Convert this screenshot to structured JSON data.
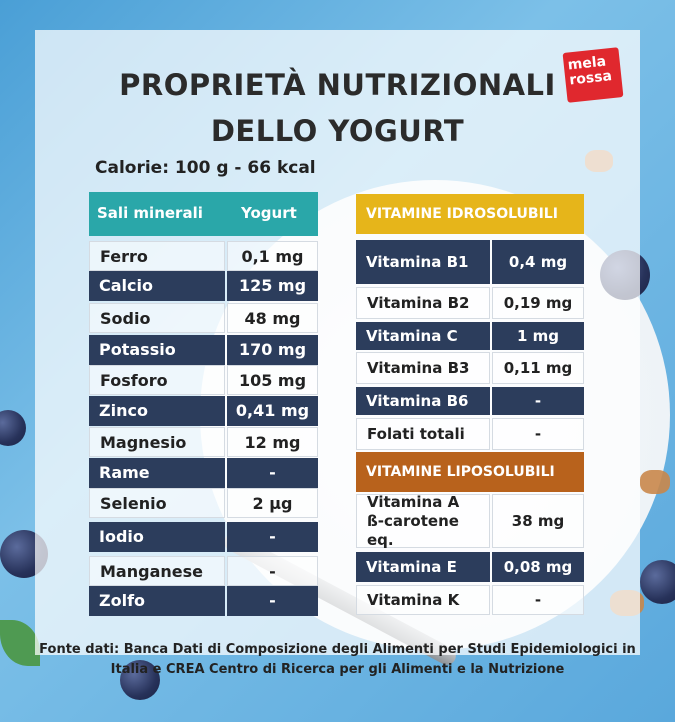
{
  "title_line1": "PROPRIETÀ NUTRIZIONALI",
  "title_line2": "DELLO YOGURT",
  "logo": {
    "line1": "mela",
    "line2": "rossa"
  },
  "calorie": "Calorie: 100 g - 66 kcal",
  "minerals": {
    "header": {
      "name": "Sali minerali",
      "value": "Yogurt"
    },
    "rows": [
      {
        "name": "Ferro",
        "value": "0,1 mg"
      },
      {
        "name": "Calcio",
        "value": "125 mg"
      },
      {
        "name": "Sodio",
        "value": "48 mg"
      },
      {
        "name": "Potassio",
        "value": "170 mg"
      },
      {
        "name": "Fosforo",
        "value": "105 mg"
      },
      {
        "name": "Zinco",
        "value": "0,41 mg"
      },
      {
        "name": "Magnesio",
        "value": "12 mg"
      },
      {
        "name": "Rame",
        "value": "-"
      },
      {
        "name": "Selenio",
        "value": "2 µg"
      },
      {
        "name": "Iodio",
        "value": "-"
      },
      {
        "name": "Manganese",
        "value": "-"
      },
      {
        "name": "Zolfo",
        "value": "-"
      }
    ]
  },
  "hydro": {
    "header": "VITAMINE IDROSOLUBILI",
    "rows": [
      {
        "name": "Vitamina B1",
        "value": "0,4 mg"
      },
      {
        "name": "Vitamina B2",
        "value": "0,19 mg"
      },
      {
        "name": "Vitamina C",
        "value": "1 mg"
      },
      {
        "name": "Vitamina B3",
        "value": "0,11 mg"
      },
      {
        "name": "Vitamina B6",
        "value": "-"
      },
      {
        "name": "Folati totali",
        "value": "-"
      }
    ]
  },
  "lipo": {
    "header": "VITAMINE LIPOSOLUBILI",
    "rows": [
      {
        "name": "Vitamina A\nß-carotene eq.",
        "value": "38 mg"
      },
      {
        "name": "Vitamina E",
        "value": "0,08 mg"
      },
      {
        "name": "Vitamina K",
        "value": "-"
      }
    ]
  },
  "source_line1": "Fonte dati: Banca Dati di Composizione degli Alimenti per Studi Epidemiologici in",
  "source_line2": "Italia e CREA Centro di Ricerca per gli Alimenti e la Nutrizione",
  "colors": {
    "teal": "#2aa7a9",
    "navy": "#2c3d5c",
    "yellow": "#e6b51a",
    "brown": "#b8621c",
    "logo_red": "#e0282e"
  }
}
